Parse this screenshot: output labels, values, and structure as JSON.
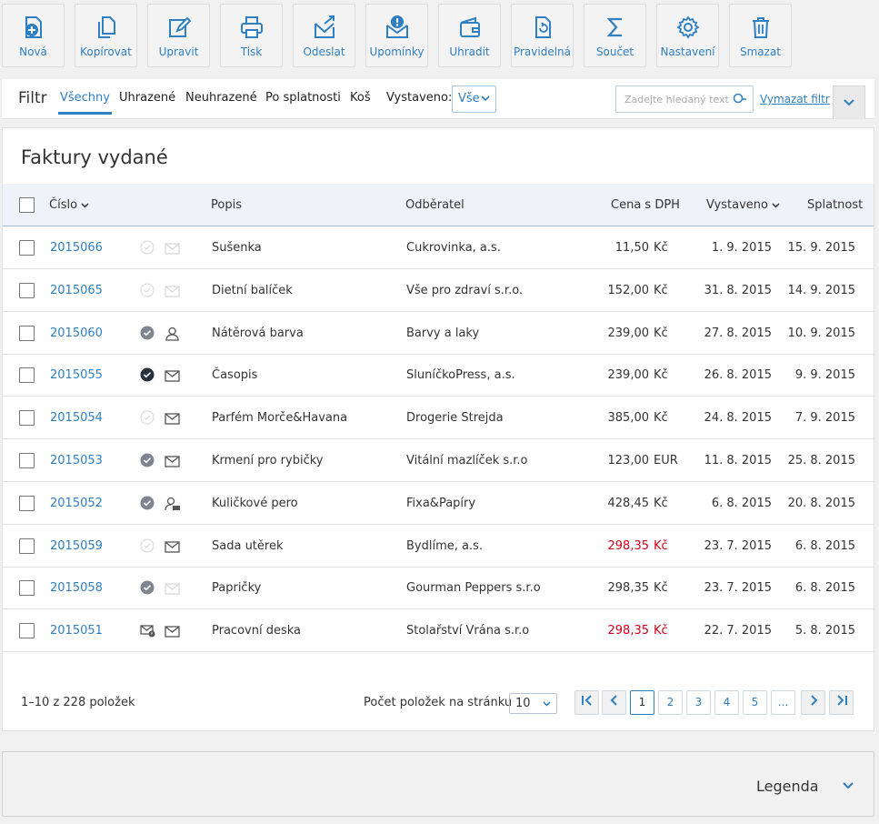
{
  "colors": {
    "accent": "#2f7fc3",
    "overdue": "#d0021b"
  },
  "toolbar": [
    {
      "label": "Nová",
      "icon": "new-document-icon"
    },
    {
      "label": "Kopírovat",
      "icon": "copy-icon"
    },
    {
      "label": "Upravit",
      "icon": "edit-icon"
    },
    {
      "label": "Tisk",
      "icon": "print-icon"
    },
    {
      "label": "Odeslat",
      "icon": "send-icon"
    },
    {
      "label": "Upomínky",
      "icon": "reminder-icon"
    },
    {
      "label": "Uhradit",
      "icon": "wallet-icon"
    },
    {
      "label": "Pravidelná",
      "icon": "recurring-icon"
    },
    {
      "label": "Součet",
      "icon": "sum-icon"
    },
    {
      "label": "Nastavení",
      "icon": "gear-icon"
    },
    {
      "label": "Smazat",
      "icon": "trash-icon"
    }
  ],
  "filter": {
    "title": "Filtr",
    "tabs": [
      "Všechny",
      "Uhrazené",
      "Neuhrazené",
      "Po splatnosti",
      "Koš"
    ],
    "active_tab": "Všechny",
    "issued_label": "Vystaveno:",
    "issued_value": "Vše",
    "search_placeholder": "Zadejte hledaný text",
    "clear_filter": "Vymazat filtr"
  },
  "panel": {
    "title": "Faktury vydané",
    "columns": {
      "number": "Číslo",
      "description": "Popis",
      "customer": "Odběratel",
      "price": "Cena s DPH",
      "issued": "Vystaveno",
      "due": "Splatnost"
    },
    "rows": [
      {
        "number": "2015066",
        "status": "empty",
        "comm": "mail-light",
        "description": "Sušenka",
        "customer": "Cukrovinka, a.s.",
        "price": "11,50",
        "currency": "Kč",
        "issued": "1. 9. 2015",
        "due": "15. 9. 2015",
        "overdue": false
      },
      {
        "number": "2015065",
        "status": "empty",
        "comm": "mail-light",
        "description": "Dietní balíček",
        "customer": "Vše pro zdraví s.r.o.",
        "price": "152,00",
        "currency": "Kč",
        "issued": "31. 8. 2015",
        "due": "14. 9. 2015",
        "overdue": false
      },
      {
        "number": "2015060",
        "status": "gray",
        "comm": "person",
        "description": "Nátěrová barva",
        "customer": "Barvy a laky",
        "price": "239,00",
        "currency": "Kč",
        "issued": "27. 8. 2015",
        "due": "10. 9. 2015",
        "overdue": false
      },
      {
        "number": "2015055",
        "status": "dark",
        "comm": "mail",
        "description": "Časopis",
        "customer": "SluníčkoPress, a.s.",
        "price": "239,00",
        "currency": "Kč",
        "issued": "26. 8. 2015",
        "due": "9. 9. 2015",
        "overdue": false
      },
      {
        "number": "2015054",
        "status": "empty",
        "comm": "mail",
        "description": "Parfém Morče&Havana",
        "customer": "Drogerie Strejda",
        "price": "385,00",
        "currency": "Kč",
        "issued": "24. 8. 2015",
        "due": "7. 9. 2015",
        "overdue": false
      },
      {
        "number": "2015053",
        "status": "gray",
        "comm": "mail",
        "description": "Krmení pro rybičky",
        "customer": "Vitální mazlíček s.r.o",
        "price": "123,00",
        "currency": "EUR",
        "issued": "11. 8. 2015",
        "due": "25. 8. 2015",
        "overdue": false
      },
      {
        "number": "2015052",
        "status": "gray",
        "comm": "person-card",
        "description": "Kuličkové pero",
        "customer": "Fixa&Papíry",
        "price": "428,45",
        "currency": "Kč",
        "issued": "6. 8. 2015",
        "due": "20. 8. 2015",
        "overdue": false
      },
      {
        "number": "2015059",
        "status": "empty",
        "comm": "mail",
        "description": "Sada utěrek",
        "customer": "Bydlíme, a.s.",
        "price": "298,35",
        "currency": "Kč",
        "issued": "23. 7. 2015",
        "due": "6. 8. 2015",
        "overdue": true
      },
      {
        "number": "2015058",
        "status": "gray",
        "comm": "mail-light",
        "description": "Papričky",
        "customer": "Gourman Peppers s.r.o",
        "price": "298,35",
        "currency": "Kč",
        "issued": "23. 7. 2015",
        "due": "6. 8. 2015",
        "overdue": false
      },
      {
        "number": "2015051",
        "status": "mail-badge",
        "comm": "mail",
        "description": "Pracovní deska",
        "customer": "Stolařství Vrána s.r.o",
        "price": "298,35",
        "currency": "Kč",
        "issued": "22. 7. 2015",
        "due": "5. 8. 2015",
        "overdue": true
      }
    ],
    "footer": {
      "count": "1–10 z 228 položek",
      "per_page_label": "Počet položek na stránku",
      "per_page_value": "10",
      "pages": [
        "1",
        "2",
        "3",
        "4",
        "5",
        "..."
      ],
      "current_page": "1"
    }
  },
  "legend": {
    "title": "Legenda"
  }
}
